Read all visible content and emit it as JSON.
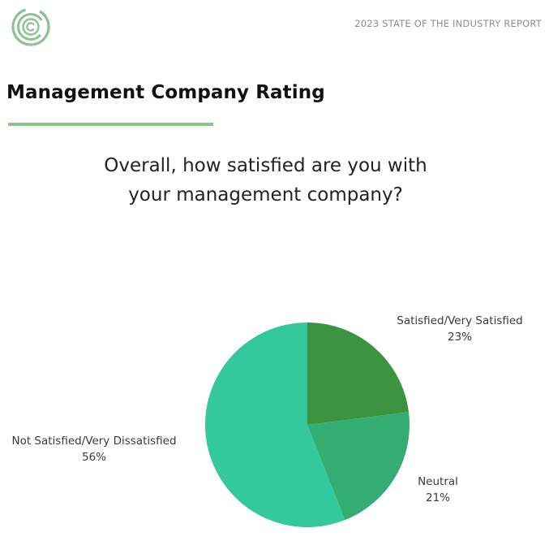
{
  "header": {
    "report_title": "2023 STATE OF THE INDUSTRY REPORT",
    "logo_icon": "copyright-circle-logo"
  },
  "section": {
    "title": "Management Company Rating",
    "rule_color": "#8cc38f"
  },
  "question": {
    "line1": "Overall, how satisfied are you with",
    "line2": "your management company?"
  },
  "chart_data": {
    "type": "pie",
    "slices": [
      {
        "label": "Satisfied/Very Satisfied",
        "value": 23,
        "display": "23%",
        "color": "#3c9441"
      },
      {
        "label": "Neutral",
        "value": 21,
        "display": "21%",
        "color": "#33ad72"
      },
      {
        "label": "Not Satisfied/Very Dissatisfied",
        "value": 56,
        "display": "56%",
        "color": "#33c99c"
      }
    ]
  }
}
